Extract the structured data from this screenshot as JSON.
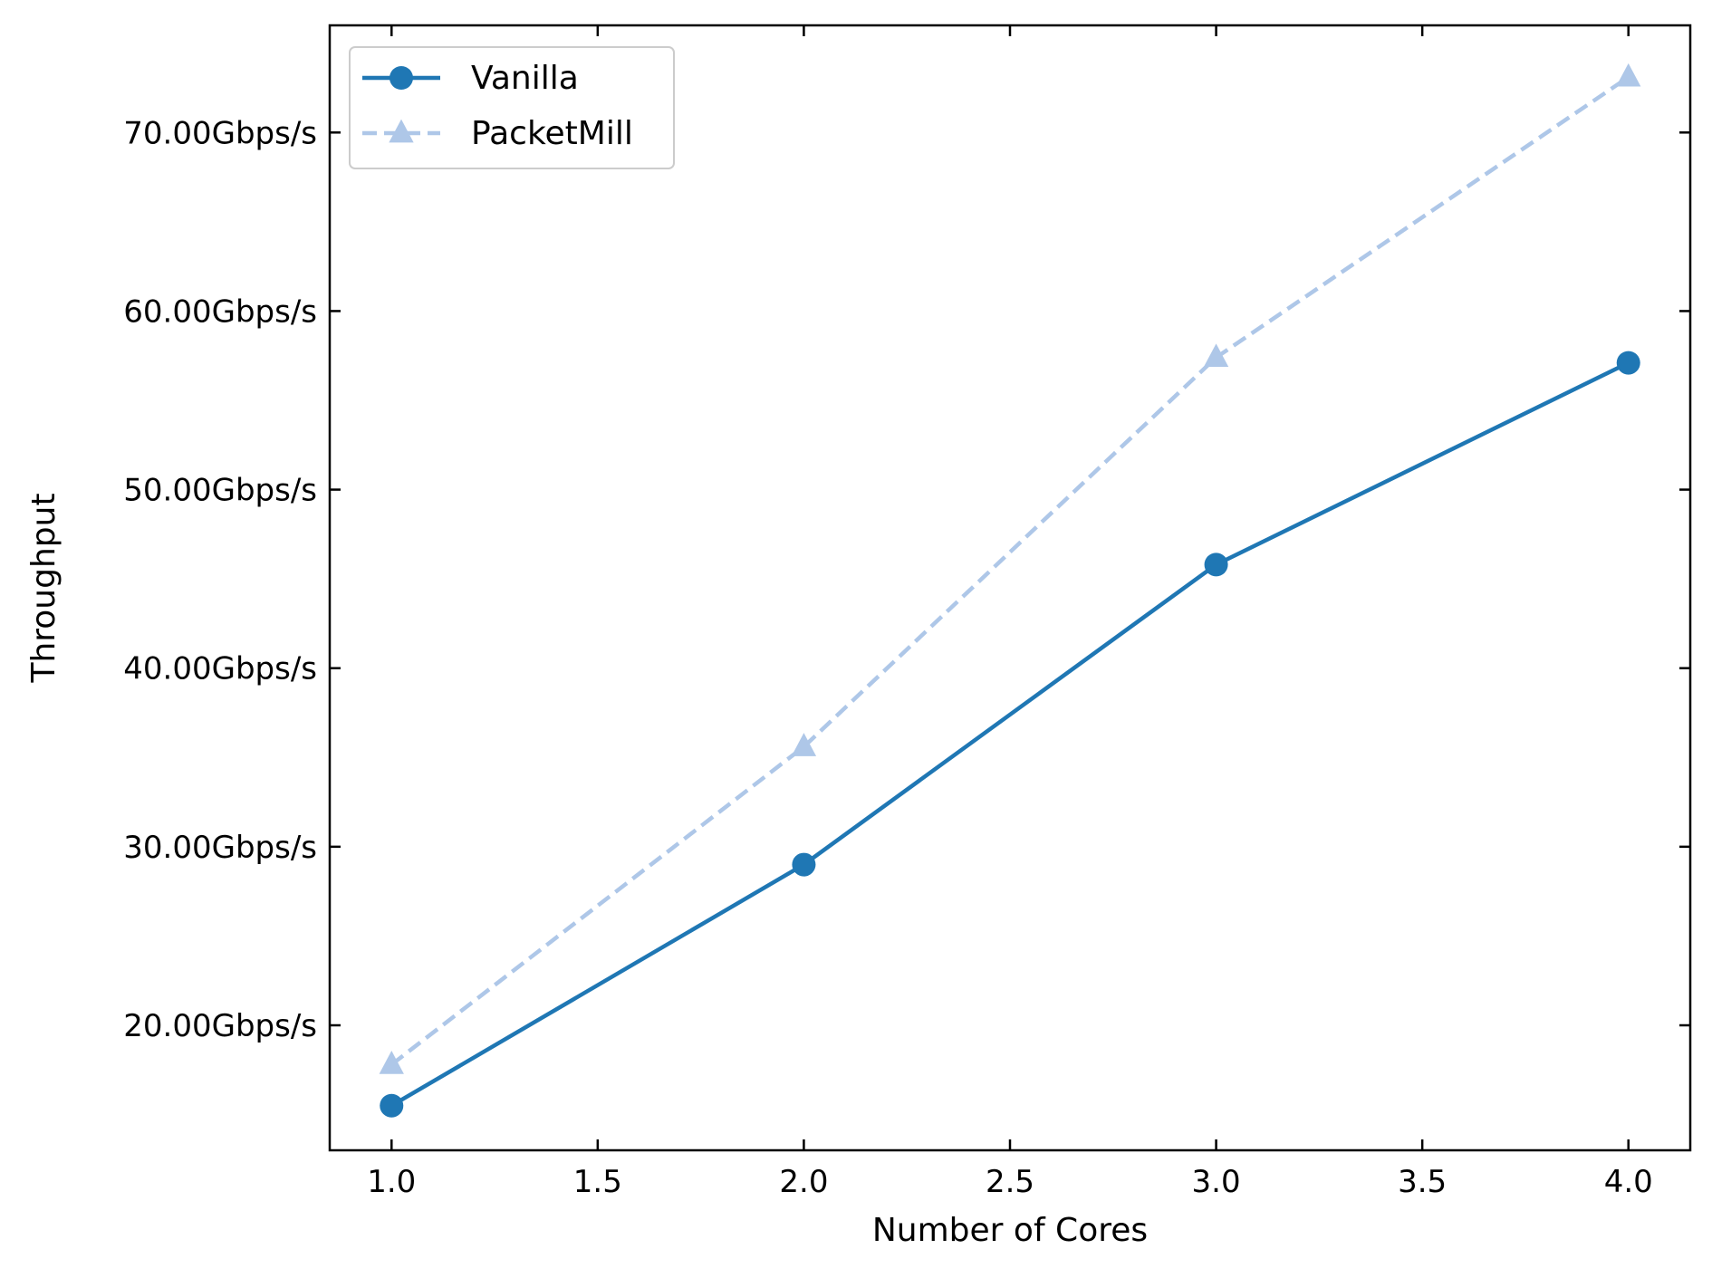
{
  "chart_data": {
    "type": "line",
    "title": "",
    "xlabel": "Number of Cores",
    "ylabel": "Throughput",
    "xlim": [
      0.85,
      4.15
    ],
    "ylim": [
      13.0,
      76.0
    ],
    "x_ticks": [
      1.0,
      1.5,
      2.0,
      2.5,
      3.0,
      3.5,
      4.0
    ],
    "x_tick_labels": [
      "1.0",
      "1.5",
      "2.0",
      "2.5",
      "3.0",
      "3.5",
      "4.0"
    ],
    "y_ticks": [
      20,
      30,
      40,
      50,
      60,
      70
    ],
    "y_tick_labels": [
      "20.00Gbps/s",
      "30.00Gbps/s",
      "40.00Gbps/s",
      "50.00Gbps/s",
      "60.00Gbps/s",
      "70.00Gbps/s"
    ],
    "grid": false,
    "legend_position": "top-left",
    "series": [
      {
        "name": "Vanilla",
        "color": "#1f77b4",
        "marker": "circle",
        "line_style": "solid",
        "x": [
          1.0,
          2.0,
          3.0,
          4.0
        ],
        "y": [
          15.5,
          29.0,
          45.8,
          57.1
        ]
      },
      {
        "name": "PacketMill",
        "color": "#aec7e8",
        "marker": "triangle",
        "line_style": "dashed",
        "x": [
          1.0,
          2.0,
          3.0,
          4.0
        ],
        "y": [
          17.8,
          35.6,
          57.4,
          73.1
        ]
      }
    ]
  }
}
